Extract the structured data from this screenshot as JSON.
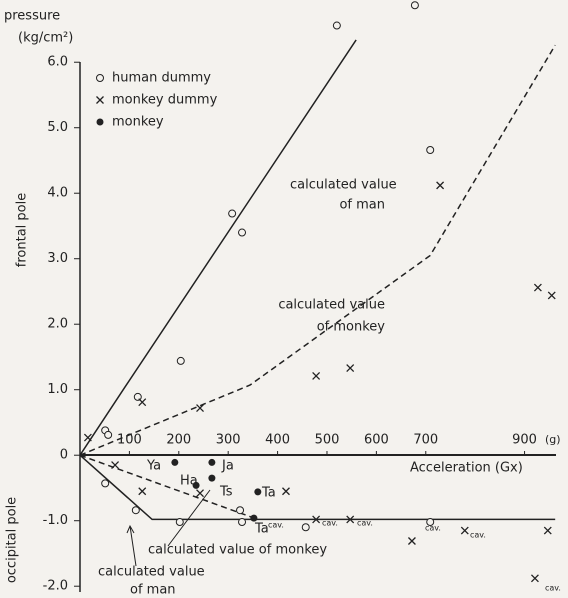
{
  "chart_data": {
    "type": "scatter",
    "y_label": [
      "pressure",
      "(kg/cm²)"
    ],
    "y_side_labels": [
      "frontal pole",
      "occipital pole"
    ],
    "x_label": "Acceleration (Gx)",
    "x_unit": "(g)",
    "xlim": [
      0,
      960
    ],
    "ylim": [
      -2.18,
      6.95
    ],
    "xticks": [
      100,
      200,
      300,
      400,
      500,
      600,
      700,
      900
    ],
    "yticks": [
      {
        "value": 6,
        "label": "6.0"
      },
      {
        "value": 5,
        "label": "5.0"
      },
      {
        "value": 4,
        "label": "4.0"
      },
      {
        "value": 3,
        "label": "3.0"
      },
      {
        "value": 2,
        "label": "2.0"
      },
      {
        "value": 1,
        "label": "1.0"
      },
      0,
      {
        "value": -1,
        "label": "-1.0"
      },
      {
        "value": -2,
        "label": "-2.0"
      }
    ],
    "grid": false,
    "legend": "top-left",
    "series": [
      {
        "name": "human dummy",
        "marker": "open-circle",
        "color": "#222",
        "x": [
          51,
          57,
          117,
          204,
          308,
          328,
          520,
          678,
          709,
          51,
          113,
          202,
          324,
          328,
          457,
          709
        ],
        "values": [
          0.38,
          0.31,
          0.89,
          1.44,
          3.69,
          3.4,
          6.56,
          6.87,
          4.66,
          -0.43,
          -0.84,
          -1.02,
          -0.84,
          -1.02,
          -1.1,
          -1.02
        ]
      },
      {
        "name": "monkey dummy",
        "marker": "cross",
        "color": "#222",
        "x": [
          16,
          126,
          243,
          478,
          547,
          729,
          927,
          955,
          71,
          126,
          243,
          417,
          478,
          547,
          672,
          779,
          947,
          921
        ],
        "values": [
          0.27,
          0.81,
          0.72,
          1.21,
          1.33,
          4.12,
          2.56,
          2.44,
          -0.15,
          -0.55,
          -0.58,
          -0.55,
          -0.98,
          -0.98,
          -1.31,
          -1.15,
          -1.15,
          -1.88
        ]
      },
      {
        "name": "monkey",
        "marker": "filled-circle",
        "color": "#222",
        "x": [
          192,
          267,
          235,
          267,
          360,
          352
        ],
        "values": [
          -0.11,
          -0.11,
          -0.46,
          -0.35,
          -0.56,
          -0.96
        ]
      }
    ],
    "lines": [
      {
        "style": "solid",
        "x": [
          0,
          91,
          559
        ],
        "values": [
          0,
          1.04,
          6.34
        ]
      },
      {
        "style": "solid",
        "x": [
          0,
          146,
          962
        ],
        "values": [
          0,
          -0.98,
          -0.98
        ]
      },
      {
        "style": "dashed",
        "x": [
          0,
          344,
          709,
          962
        ],
        "values": [
          0,
          1.07,
          3.05,
          6.26
        ]
      },
      {
        "style": "dashed",
        "x": [
          0,
          360
        ],
        "values": [
          0,
          -0.98
        ]
      }
    ],
    "annotations": [
      "calculated value",
      "of man",
      "calculated value",
      "of monkey",
      "calculated value of monkey",
      "calculated value",
      "of man",
      "Ya",
      "Ja",
      "Ha",
      "Ts",
      "Ta",
      "Ta",
      "cav.",
      "cav.",
      "cav.",
      "cav.",
      "cav.",
      "cav."
    ]
  }
}
